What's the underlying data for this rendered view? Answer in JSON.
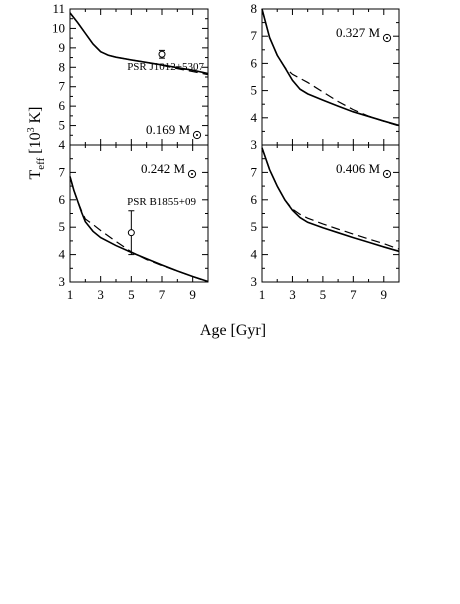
{
  "figure": {
    "ylabel_main": "T",
    "ylabel_sub": "eff",
    "ylabel_rest_open": " [10",
    "ylabel_sup": "3",
    "ylabel_rest_close": " K]",
    "xlabel": "Age [Gyr]"
  },
  "chart_data": [
    {
      "type": "line",
      "panel": "top-left",
      "mass_label": "0.169 M",
      "xlim": [
        1,
        10
      ],
      "ylim": [
        4,
        11
      ],
      "x_ticks": [
        1,
        3,
        5,
        7,
        9
      ],
      "y_ticks": [
        4,
        5,
        6,
        7,
        8,
        9,
        10,
        11
      ],
      "series": [
        {
          "style": "solid",
          "x": [
            1,
            1.5,
            2,
            2.5,
            3,
            3.5,
            4,
            5,
            6,
            7,
            8,
            9,
            10
          ],
          "y": [
            10.8,
            10.3,
            9.75,
            9.2,
            8.8,
            8.62,
            8.52,
            8.38,
            8.25,
            8.12,
            7.98,
            7.85,
            7.68
          ]
        },
        {
          "style": "dashed",
          "x": [
            1,
            1.5,
            2,
            2.5,
            3,
            3.5,
            4,
            5,
            6,
            7,
            8,
            9,
            10
          ],
          "y": [
            10.8,
            10.3,
            9.75,
            9.2,
            8.8,
            8.62,
            8.52,
            8.38,
            8.25,
            8.1,
            7.93,
            7.78,
            7.62
          ]
        }
      ],
      "observation": {
        "label": "PSR J1012+5307",
        "x": 7.0,
        "y": 8.67,
        "y_err": 0.2
      }
    },
    {
      "type": "line",
      "panel": "top-right",
      "mass_label": "0.327 M",
      "xlim": [
        1,
        10
      ],
      "ylim": [
        3,
        8
      ],
      "x_ticks": [
        1,
        3,
        5,
        7,
        9
      ],
      "y_ticks": [
        3,
        4,
        5,
        6,
        7,
        8
      ],
      "series": [
        {
          "style": "solid",
          "x": [
            1,
            1.5,
            2,
            2.5,
            3,
            3.5,
            4,
            5,
            6,
            7,
            8,
            9,
            10
          ],
          "y": [
            8.0,
            6.95,
            6.3,
            5.85,
            5.38,
            5.05,
            4.88,
            4.65,
            4.43,
            4.22,
            4.05,
            3.88,
            3.72
          ]
        },
        {
          "style": "dashed",
          "x": [
            1,
            1.5,
            2,
            2.5,
            3,
            4,
            5,
            6,
            7,
            8,
            9,
            10
          ],
          "y": [
            8.0,
            6.95,
            6.3,
            5.85,
            5.6,
            5.3,
            4.95,
            4.6,
            4.3,
            4.06,
            3.87,
            3.7
          ]
        }
      ]
    },
    {
      "type": "line",
      "panel": "bottom-left",
      "mass_label": "0.242 M",
      "xlim": [
        1,
        10
      ],
      "ylim": [
        3,
        8
      ],
      "x_ticks": [
        1,
        3,
        5,
        7,
        9
      ],
      "y_ticks": [
        3,
        4,
        5,
        6,
        7,
        8
      ],
      "series": [
        {
          "style": "solid",
          "x": [
            1,
            1.25,
            1.5,
            1.75,
            2,
            2.5,
            3,
            4,
            5,
            6,
            7,
            8,
            9,
            10
          ],
          "y": [
            6.85,
            6.35,
            5.95,
            5.55,
            5.2,
            4.85,
            4.62,
            4.33,
            4.08,
            3.85,
            3.62,
            3.4,
            3.2,
            3.02
          ]
        },
        {
          "style": "dashed",
          "x": [
            1,
            1.25,
            1.5,
            1.75,
            2,
            2.5,
            3,
            4,
            5,
            6,
            7,
            8,
            9,
            10
          ],
          "y": [
            6.85,
            6.35,
            5.95,
            5.6,
            5.3,
            5.1,
            4.88,
            4.48,
            4.1,
            3.82,
            3.6,
            3.4,
            3.2,
            3.0
          ]
        }
      ],
      "observation": {
        "label": "PSR B1855+09",
        "x": 5.0,
        "y": 4.8,
        "y_err": 0.8
      }
    },
    {
      "type": "line",
      "panel": "bottom-right",
      "mass_label": "0.406 M",
      "xlim": [
        1,
        10
      ],
      "ylim": [
        3,
        8
      ],
      "x_ticks": [
        1,
        3,
        5,
        7,
        9
      ],
      "y_ticks": [
        3,
        4,
        5,
        6,
        7,
        8
      ],
      "series": [
        {
          "style": "solid",
          "x": [
            1,
            1.5,
            2,
            2.5,
            3,
            3.5,
            4,
            5,
            6,
            7,
            8,
            9,
            10
          ],
          "y": [
            7.9,
            7.1,
            6.5,
            6.0,
            5.62,
            5.35,
            5.18,
            4.98,
            4.8,
            4.62,
            4.45,
            4.28,
            4.12
          ]
        },
        {
          "style": "dashed",
          "x": [
            1,
            1.5,
            2,
            2.5,
            3,
            3.5,
            4,
            5,
            6,
            7,
            8,
            9,
            10
          ],
          "y": [
            7.9,
            7.1,
            6.5,
            6.0,
            5.66,
            5.47,
            5.33,
            5.12,
            4.93,
            4.75,
            4.57,
            4.4,
            4.2
          ]
        }
      ]
    }
  ]
}
